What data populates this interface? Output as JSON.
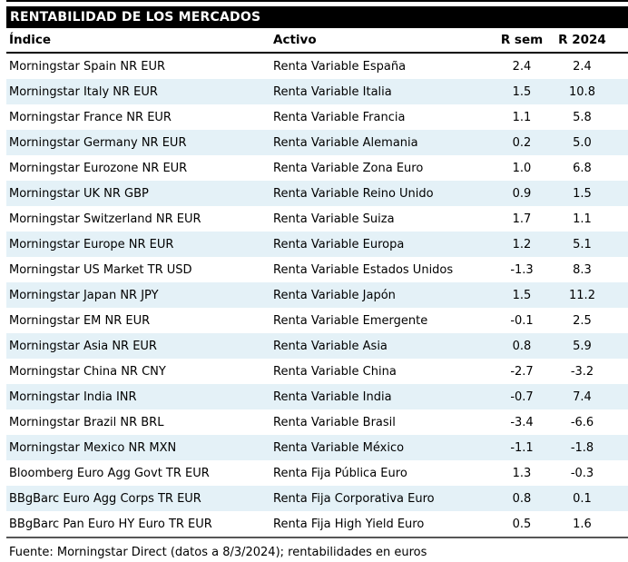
{
  "chart_data": {
    "type": "table",
    "title": "RENTABILIDAD DE LOS MERCADOS",
    "columns": [
      "Índice",
      "Activo",
      "R sem",
      "R 2024"
    ],
    "rows": [
      [
        "Morningstar Spain NR EUR",
        "Renta Variable España",
        "2.4",
        "2.4"
      ],
      [
        "Morningstar Italy NR EUR",
        "Renta Variable Italia",
        "1.5",
        "10.8"
      ],
      [
        "Morningstar France NR EUR",
        "Renta Variable Francia",
        "1.1",
        "5.8"
      ],
      [
        "Morningstar Germany NR EUR",
        "Renta Variable Alemania",
        "0.2",
        "5.0"
      ],
      [
        "Morningstar Eurozone NR EUR",
        "Renta Variable Zona Euro",
        "1.0",
        "6.8"
      ],
      [
        "Morningstar UK NR GBP",
        "Renta Variable Reino Unido",
        "0.9",
        "1.5"
      ],
      [
        "Morningstar Switzerland NR EUR",
        "Renta Variable Suiza",
        "1.7",
        "1.1"
      ],
      [
        "Morningstar Europe NR EUR",
        "Renta Variable Europa",
        "1.2",
        "5.1"
      ],
      [
        "Morningstar US Market TR USD",
        "Renta Variable Estados Unidos",
        "-1.3",
        "8.3"
      ],
      [
        "Morningstar Japan NR JPY",
        "Renta Variable Japón",
        "1.5",
        "11.2"
      ],
      [
        "Morningstar EM NR EUR",
        "Renta Variable Emergente",
        "-0.1",
        "2.5"
      ],
      [
        "Morningstar Asia NR EUR",
        "Renta Variable Asia",
        "0.8",
        "5.9"
      ],
      [
        "Morningstar China NR CNY",
        "Renta Variable China",
        "-2.7",
        "-3.2"
      ],
      [
        "Morningstar India INR",
        "Renta Variable India",
        "-0.7",
        "7.4"
      ],
      [
        "Morningstar Brazil NR BRL",
        "Renta Variable Brasil",
        "-3.4",
        "-6.6"
      ],
      [
        "Morningstar Mexico NR MXN",
        "Renta Variable México",
        "-1.1",
        "-1.8"
      ],
      [
        "Bloomberg Euro Agg Govt TR EUR",
        "Renta Fija Pública Euro",
        "1.3",
        "-0.3"
      ],
      [
        "BBgBarc Euro Agg Corps TR EUR",
        "Renta Fija Corporativa Euro",
        "0.8",
        "0.1"
      ],
      [
        "BBgBarc Pan Euro HY Euro TR EUR",
        "Renta Fija High Yield Euro",
        "0.5",
        "1.6"
      ]
    ],
    "footnote": "Fuente: Morningstar Direct (datos a 8/3/2024); rentabilidades en euros",
    "layout": {
      "striped_rows": true,
      "stripe_pattern": "even rows shaded"
    }
  },
  "colors": {
    "title_bg": "#000000",
    "title_fg": "#ffffff",
    "row_stripe": "#e4f1f7",
    "header_rule": "#000000",
    "bottom_rule": "#565656",
    "text": "#000000"
  }
}
